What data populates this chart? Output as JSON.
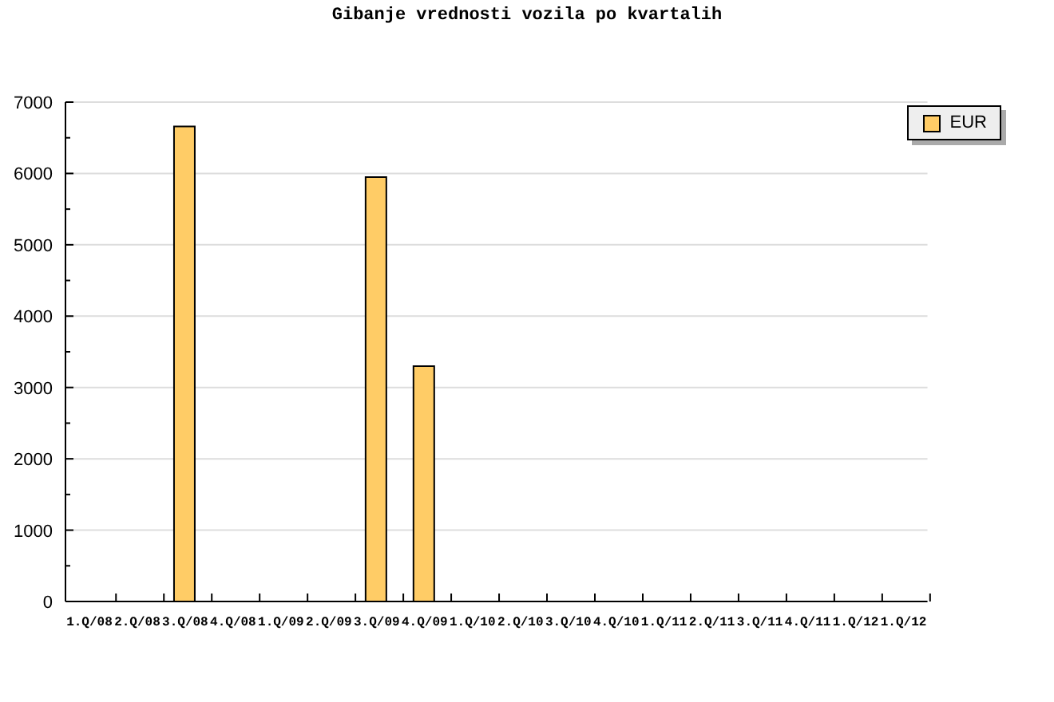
{
  "chart_data": {
    "type": "bar",
    "title": "Gibanje vrednosti vozila po kvartalih",
    "categories": [
      "1.Q/08",
      "2.Q/08",
      "3.Q/08",
      "4.Q/08",
      "1.Q/09",
      "2.Q/09",
      "3.Q/09",
      "4.Q/09",
      "1.Q/10",
      "2.Q/10",
      "3.Q/10",
      "4.Q/10",
      "1.Q/11",
      "2.Q/11",
      "3.Q/11",
      "4.Q/11",
      "1.Q/12",
      "1.Q/12"
    ],
    "series": [
      {
        "name": "EUR",
        "color": "#ffcc66",
        "values": [
          null,
          null,
          6660,
          null,
          null,
          null,
          5950,
          3300,
          null,
          null,
          null,
          null,
          null,
          null,
          null,
          null,
          null,
          null
        ]
      }
    ],
    "ylim": [
      0,
      7000
    ],
    "yticks": [
      0,
      {
        "value": 500,
        "label": null
      },
      1000,
      {
        "value": 1500,
        "label": null
      },
      2000,
      {
        "value": 2500,
        "label": null
      },
      3000,
      {
        "value": 3500,
        "label": null
      },
      4000,
      {
        "value": 4500,
        "label": null
      },
      5000,
      {
        "value": 5500,
        "label": null
      },
      6000,
      {
        "value": 6500,
        "label": null
      },
      7000
    ],
    "grid": "y",
    "legend": "top right"
  }
}
